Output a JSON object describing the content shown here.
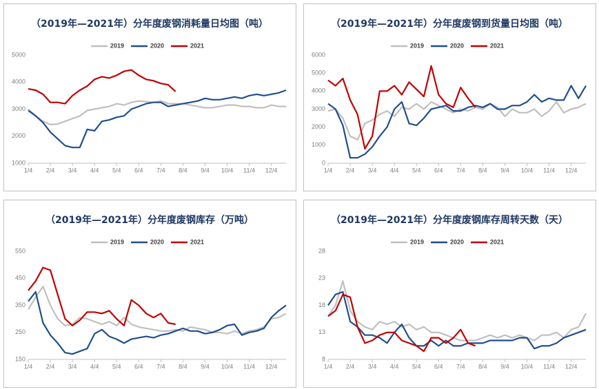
{
  "chart_data": [
    {
      "type": "line",
      "title": "（2019年—2021年）分年度废钢消耗量日均图（吨）",
      "categories": [
        "1/4",
        null,
        null,
        "2/4",
        null,
        null,
        "3/4",
        null,
        null,
        "4/4",
        null,
        null,
        "5/4",
        null,
        null,
        "6/4",
        null,
        null,
        "7/4",
        null,
        null,
        "8/4",
        null,
        null,
        "9/4",
        null,
        null,
        "10/4",
        null,
        null,
        "11/4",
        null,
        null,
        "12/4",
        null,
        null
      ],
      "ylim": [
        1000,
        5000
      ],
      "yticks": [
        1000,
        2000,
        3000,
        4000,
        5000
      ],
      "series": [
        {
          "name": "2019",
          "color": "#bfbfbf",
          "values": [
            3000,
            2750,
            2550,
            2430,
            2450,
            2550,
            2650,
            2750,
            2950,
            3000,
            3050,
            3100,
            3200,
            3150,
            3250,
            3300,
            3280,
            3250,
            3300,
            3200,
            3200,
            3200,
            3150,
            3100,
            3050,
            3050,
            3100,
            3150,
            3150,
            3100,
            3100,
            3050,
            3050,
            3150,
            3100,
            3100
          ]
        },
        {
          "name": "2020",
          "color": "#1f4e8c",
          "values": [
            2950,
            2750,
            2500,
            2150,
            1900,
            1650,
            1580,
            1580,
            2250,
            2200,
            2550,
            2600,
            2700,
            2750,
            3000,
            3100,
            3200,
            3250,
            3250,
            3100,
            3150,
            3200,
            3250,
            3300,
            3400,
            3350,
            3350,
            3400,
            3450,
            3400,
            3500,
            3550,
            3500,
            3550,
            3600,
            3700
          ]
        },
        {
          "name": "2021",
          "color": "#c00000",
          "values": [
            3750,
            3700,
            3550,
            3250,
            3250,
            3200,
            3500,
            3700,
            3850,
            4100,
            4200,
            4150,
            4250,
            4400,
            4450,
            4250,
            4100,
            4050,
            3950,
            3900,
            3650,
            null,
            null,
            null,
            null,
            null,
            null,
            null,
            null,
            null,
            null,
            null,
            null,
            null,
            null,
            null
          ]
        }
      ]
    },
    {
      "type": "line",
      "title": "（2019年—2021年）分年度废钢到货量日均图（吨）",
      "categories": [
        "1/4",
        null,
        null,
        "2/4",
        null,
        null,
        "3/4",
        null,
        null,
        "4/4",
        null,
        null,
        "5/4",
        null,
        null,
        "6/4",
        null,
        null,
        "7/4",
        null,
        null,
        "8/4",
        null,
        null,
        "9/4",
        null,
        null,
        "10/4",
        null,
        null,
        "11/4",
        null,
        null,
        "12/4",
        null,
        null
      ],
      "ylim": [
        0,
        6000
      ],
      "yticks": [
        0,
        1000,
        2000,
        3000,
        4000,
        5000,
        6000
      ],
      "series": [
        {
          "name": "2019",
          "color": "#bfbfbf",
          "values": [
            2900,
            3000,
            2500,
            1500,
            1300,
            2200,
            2400,
            2700,
            2900,
            2600,
            3100,
            3000,
            3300,
            3000,
            3400,
            3200,
            3000,
            2800,
            3000,
            2900,
            3100,
            3000,
            3300,
            3100,
            2600,
            3000,
            2800,
            2800,
            3000,
            2600,
            2900,
            3400,
            2800,
            3000,
            3100,
            3300
          ]
        },
        {
          "name": "2020",
          "color": "#1f4e8c",
          "values": [
            3300,
            3000,
            2100,
            300,
            300,
            500,
            900,
            1500,
            2000,
            3000,
            3400,
            2200,
            2100,
            2500,
            3000,
            3100,
            3200,
            2900,
            2900,
            3100,
            3200,
            3100,
            3300,
            3000,
            3000,
            3200,
            3200,
            3400,
            3800,
            3400,
            3600,
            3500,
            3500,
            4300,
            3600,
            4300
          ]
        },
        {
          "name": "2021",
          "color": "#c00000",
          "values": [
            4600,
            4300,
            4700,
            3500,
            2700,
            800,
            1500,
            4000,
            4000,
            4300,
            3800,
            4500,
            4100,
            3700,
            5400,
            3800,
            3300,
            3100,
            4200,
            3600,
            3100,
            null,
            null,
            null,
            null,
            null,
            null,
            null,
            null,
            null,
            null,
            null,
            null,
            null,
            null,
            null
          ]
        }
      ]
    },
    {
      "type": "line",
      "title": "（2019年—2021年）分年度废钢库存（万吨）",
      "categories": [
        "1/4",
        null,
        null,
        "2/4",
        null,
        null,
        "3/4",
        null,
        null,
        "4/4",
        null,
        null,
        "5/4",
        null,
        null,
        "6/4",
        null,
        null,
        "7/4",
        null,
        null,
        "8/4",
        null,
        null,
        "9/4",
        null,
        null,
        "10/4",
        null,
        null,
        "11/4",
        null,
        null,
        "12/4",
        null,
        null
      ],
      "ylim": [
        150,
        550
      ],
      "yticks": [
        150,
        250,
        350,
        450,
        550
      ],
      "series": [
        {
          "name": "2019",
          "color": "#bfbfbf",
          "values": [
            335,
            380,
            420,
            350,
            300,
            275,
            280,
            305,
            300,
            290,
            280,
            290,
            275,
            305,
            280,
            270,
            265,
            260,
            255,
            255,
            260,
            255,
            270,
            265,
            260,
            250,
            250,
            245,
            255,
            245,
            255,
            260,
            270,
            300,
            305,
            320
          ]
        },
        {
          "name": "2020",
          "color": "#1f4e8c",
          "values": [
            365,
            400,
            285,
            240,
            210,
            175,
            170,
            180,
            190,
            245,
            260,
            235,
            225,
            210,
            225,
            230,
            235,
            230,
            240,
            245,
            255,
            265,
            255,
            255,
            245,
            250,
            260,
            275,
            280,
            240,
            250,
            255,
            265,
            305,
            330,
            350
          ]
        },
        {
          "name": "2021",
          "color": "#c00000",
          "values": [
            405,
            440,
            490,
            480,
            390,
            300,
            275,
            295,
            325,
            325,
            320,
            330,
            300,
            275,
            370,
            350,
            320,
            305,
            320,
            285,
            280,
            null,
            null,
            null,
            null,
            null,
            null,
            null,
            null,
            null,
            null,
            null,
            null,
            null,
            null,
            null
          ]
        }
      ]
    },
    {
      "type": "line",
      "title": "（2019年—2021年）分年度废钢库存周转天数（天）",
      "categories": [
        "1/4",
        null,
        null,
        "2/4",
        null,
        null,
        "3/4",
        null,
        null,
        "4/4",
        null,
        null,
        "5/4",
        null,
        null,
        "6/4",
        null,
        null,
        "7/4",
        null,
        null,
        "8/4",
        null,
        null,
        "9/4",
        null,
        null,
        "10/4",
        null,
        null,
        "11/4",
        null,
        null,
        "12/4",
        null,
        null
      ],
      "ylim": [
        8,
        28
      ],
      "yticks": [
        8,
        13,
        18,
        23,
        28
      ],
      "series": [
        {
          "name": "2019",
          "color": "#bfbfbf",
          "values": [
            16,
            18,
            22.5,
            17,
            15,
            14,
            13.5,
            15,
            14.5,
            15,
            14,
            14.5,
            13.5,
            14,
            13,
            13,
            12.5,
            12,
            11.5,
            11.5,
            11.5,
            12,
            12.5,
            12,
            12.5,
            12,
            12.5,
            12,
            11.5,
            12.5,
            12.5,
            13,
            12,
            13.5,
            14,
            16.5
          ]
        },
        {
          "name": "2020",
          "color": "#1f4e8c",
          "values": [
            18,
            20,
            20.5,
            15,
            14,
            12.5,
            12.5,
            12,
            11,
            13,
            14.5,
            12,
            10.5,
            10.5,
            11.5,
            10.5,
            11.5,
            10.5,
            10.5,
            11,
            11,
            11,
            11.5,
            11.5,
            11.5,
            11.5,
            12,
            12,
            10,
            10.5,
            10.5,
            11,
            12,
            12.5,
            13,
            13.5
          ]
        },
        {
          "name": "2021",
          "color": "#c00000",
          "values": [
            16,
            17,
            20,
            19.5,
            14,
            11,
            11.5,
            12.5,
            13,
            13,
            11.5,
            11,
            10.5,
            9.5,
            12,
            12,
            11,
            12,
            13.5,
            11,
            10.5,
            null,
            null,
            null,
            null,
            null,
            null,
            null,
            null,
            null,
            null,
            null,
            null,
            null,
            null,
            null
          ]
        }
      ]
    }
  ]
}
